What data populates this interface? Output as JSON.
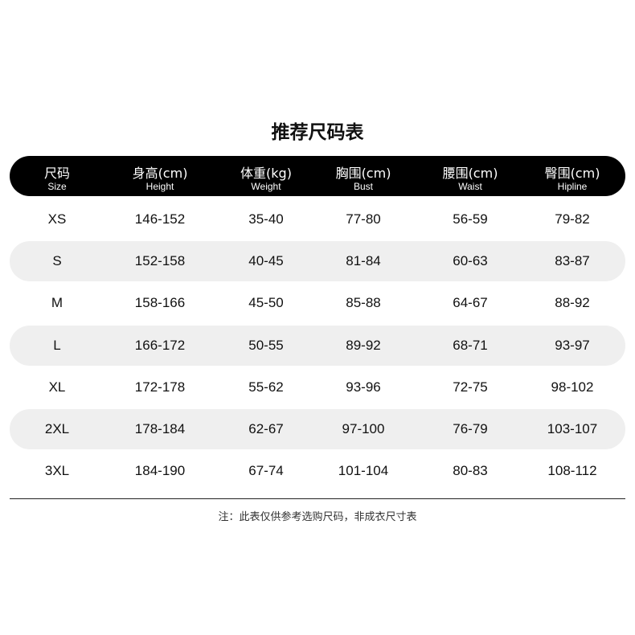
{
  "title": "推荐尺码表",
  "columns": [
    {
      "zh": "尺码",
      "en": "Size"
    },
    {
      "zh": "身高(cm)",
      "en": "Height"
    },
    {
      "zh": "体重(kg)",
      "en": "Weight"
    },
    {
      "zh": "胸围(cm)",
      "en": "Bust"
    },
    {
      "zh": "腰围(cm)",
      "en": "Waist"
    },
    {
      "zh": "臀围(cm)",
      "en": "Hipline"
    }
  ],
  "rows": [
    [
      "XS",
      "146-152",
      "35-40",
      "77-80",
      "56-59",
      "79-82"
    ],
    [
      "S",
      "152-158",
      "40-45",
      "81-84",
      "60-63",
      "83-87"
    ],
    [
      "M",
      "158-166",
      "45-50",
      "85-88",
      "64-67",
      "88-92"
    ],
    [
      "L",
      "166-172",
      "50-55",
      "89-92",
      "68-71",
      "93-97"
    ],
    [
      "XL",
      "172-178",
      "55-62",
      "93-96",
      "72-75",
      "98-102"
    ],
    [
      "2XL",
      "178-184",
      "62-67",
      "97-100",
      "76-79",
      "103-107"
    ],
    [
      "3XL",
      "184-190",
      "67-74",
      "101-104",
      "80-83",
      "108-112"
    ]
  ],
  "note": "注：此表仅供参考选购尺码，非成衣尺寸表",
  "colors": {
    "header_bg": "#000000",
    "alt_row_bg": "#efefef"
  }
}
